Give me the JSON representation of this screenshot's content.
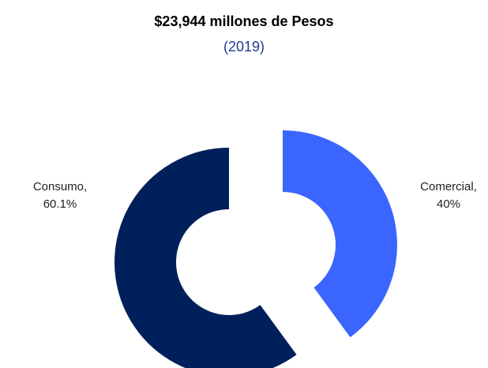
{
  "title": "$23,944 millones de Pesos",
  "subtitle": "(2019)",
  "chart_data": {
    "type": "pie",
    "title": "$23,944 millones de Pesos",
    "subtitle": "(2019)",
    "categories": [
      "Consumo",
      "Comercial"
    ],
    "values": [
      60.1,
      40
    ],
    "labels": {
      "consumo": [
        "Consumo,",
        "60.1%"
      ],
      "comercial": [
        "Comercial,",
        "40%"
      ]
    },
    "colors": {
      "consumo": "#00205b",
      "comercial": "#3a66ff"
    },
    "donut": true,
    "exploded": true
  }
}
